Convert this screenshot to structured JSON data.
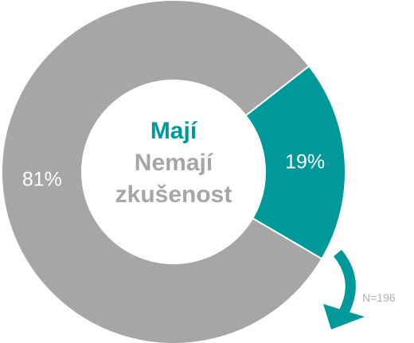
{
  "chart_data": {
    "type": "pie",
    "donut": true,
    "categories": [
      "Mají",
      "Nemají zkušenost"
    ],
    "values": [
      19,
      81
    ],
    "value_labels": [
      "19%",
      "81%"
    ],
    "colors": [
      "#009999",
      "#a6a6a6"
    ],
    "annotation": "N=196"
  }
}
